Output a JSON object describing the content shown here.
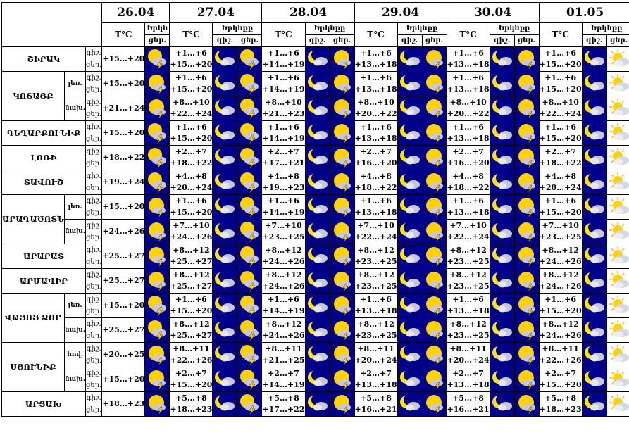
{
  "dates": [
    "26.04",
    "27.04",
    "28.04",
    "29.04",
    "30.04",
    "01.05"
  ],
  "headers": {
    "temp": "T°C",
    "cloud_full": "Երկնքը",
    "cloud_first": "Երկն",
    "night": "գիշ.",
    "day": "ցեր."
  },
  "rows": [
    {
      "region": "ՇԻՐԱԿ",
      "night_label": "գիշ.",
      "day_label": "ցեր.",
      "temps": [
        "+15…+20",
        "+1…+6",
        "+15…+20",
        "+1…+6",
        "+14…+19",
        "+1…+6",
        "+13…+18",
        "+1…+6",
        "+13…+18",
        "+1…+6",
        "+15…+20"
      ],
      "icons": [
        "storm",
        "moon-cloud",
        "storm",
        "moon-cloud",
        "sun-cloud",
        "moon-cloud",
        "sun-cloud",
        "moon-cloud",
        "sun-cloud",
        "moon-cloud",
        "sun"
      ]
    },
    {
      "region": "ԿՈՏԱՅՔ",
      "sub": "լեռ.",
      "night_label": "գիշ.",
      "day_label": "ցեր.",
      "temps": [
        "+15…+20",
        "+1…+6",
        "+15…+20",
        "+1…+6",
        "+14…+19",
        "+1…+6",
        "+13…+18",
        "+1…+6",
        "+13…+18",
        "+1…+6",
        "+15…+20"
      ],
      "icons": [
        "sun-cloud",
        "moon-cloud",
        "storm",
        "moon-cloud",
        "sun-cloud",
        "moon-cloud",
        "sun-cloud",
        "moon-cloud",
        "sun-cloud",
        "moon-cloud",
        "sun"
      ]
    },
    {
      "region": "",
      "sub": "նախ.",
      "night_label": "գիշ.",
      "day_label": "ցեր.",
      "temps": [
        "+21…+24",
        "+8…+10",
        "+22…+24",
        "+8…+10",
        "+21…+23",
        "+8…+10",
        "+20…+22",
        "+8…+10",
        "+20…+22",
        "+8…+10",
        "+22…+24"
      ],
      "icons": [
        "sun-cloud",
        "moon-cloud",
        "storm",
        "moon-cloud",
        "sun-cloud",
        "moon-cloud",
        "sun-cloud",
        "moon-cloud",
        "sun-cloud",
        "moon-cloud",
        "sun"
      ]
    },
    {
      "region": "ԳԵՂԱՐՔՈՒՆԻՔ",
      "night_label": "գիշ.",
      "day_label": "ցեր.",
      "temps": [
        "+15…+20",
        "+1…+6",
        "+15…+20",
        "+1…+6",
        "+14…+19",
        "+1…+6",
        "+13…+18",
        "+1…+6",
        "+13…+18",
        "+1…+6",
        "+15…+20"
      ],
      "icons": [
        "storm",
        "moon-cloud",
        "storm",
        "moon-cloud",
        "sun-cloud",
        "moon-cloud",
        "sun-cloud",
        "moon-cloud",
        "sun-cloud",
        "moon-cloud",
        "sun"
      ]
    },
    {
      "region": "ԼՈՌԻ",
      "night_label": "գիշ.",
      "day_label": "ցեր.",
      "temps": [
        "+18…+22",
        "+2…+7",
        "+18…+22",
        "+2…+7",
        "+17…+21",
        "+2…+7",
        "+16…+20",
        "+2…+7",
        "+16…+20",
        "+2…+7",
        "+18…+22"
      ],
      "icons": [
        "storm",
        "moon-cloud",
        "storm",
        "moon-cloud",
        "sun-cloud",
        "moon-cloud",
        "sun-cloud",
        "moon-cloud",
        "sun-cloud",
        "moon-cloud",
        "sun"
      ]
    },
    {
      "region": "ՏԱՎՈՒՇ",
      "night_label": "գիշ.",
      "day_label": "ցեր.",
      "temps": [
        "+19…+24",
        "+4…+8",
        "+20…+24",
        "+4…+8",
        "+19…+23",
        "+4…+8",
        "+18…+22",
        "+4…+8",
        "+18…+22",
        "+4…+8",
        "+20…+24"
      ],
      "icons": [
        "storm",
        "moon-cloud",
        "storm",
        "moon-cloud",
        "sun-cloud",
        "moon-cloud",
        "sun-cloud",
        "moon-cloud",
        "sun-cloud",
        "moon-cloud",
        "sun"
      ]
    },
    {
      "region": "ԱՐԱԳԱԾՈՏՆ",
      "sub": "լեռ.",
      "night_label": "գիշ.",
      "day_label": "ցեր.",
      "temps": [
        "+15…+20",
        "+1…+6",
        "+15…+20",
        "+1…+6",
        "+14…+19",
        "+1…+6",
        "+13…+18",
        "+1…+6",
        "+13…+18",
        "+1…+6",
        "+15…+20"
      ],
      "icons": [
        "sun-cloud",
        "moon-cloud",
        "storm",
        "moon-cloud",
        "sun-cloud",
        "moon-cloud",
        "sun-cloud",
        "moon-cloud",
        "sun-cloud",
        "moon-cloud",
        "sun"
      ]
    },
    {
      "region": "",
      "sub": "նախ.",
      "night_label": "գիշ.",
      "day_label": "ցեր.",
      "temps": [
        "+24…+26",
        "+7…+10",
        "+24…+26",
        "+7…+10",
        "+23…+25",
        "+7…+10",
        "+22…+24",
        "+7…+10",
        "+22…+24",
        "+7…+10",
        "+23…+25"
      ],
      "icons": [
        "sun-cloud",
        "moon-cloud",
        "storm",
        "moon-cloud",
        "sun-cloud",
        "moon-cloud",
        "sun-cloud",
        "moon-cloud",
        "sun-cloud",
        "moon-cloud",
        "sun"
      ]
    },
    {
      "region": "ԱՐԱՐԱՏ",
      "night_label": "գիշ.",
      "day_label": "ցեր.",
      "temps": [
        "+25…+27",
        "+8…+12",
        "+25…+27",
        "+8…+12",
        "+24…+26",
        "+8…+12",
        "+23…+25",
        "+8…+12",
        "+23…+25",
        "+8…+12",
        "+24…+26"
      ],
      "icons": [
        "sun-cloud",
        "moon-cloud",
        "storm",
        "moon-cloud",
        "sun-cloud",
        "moon-cloud",
        "sun-cloud",
        "moon-cloud",
        "sun-cloud",
        "moon-cloud",
        "sun"
      ]
    },
    {
      "region": "ԱՐՄԱՎԻՐ",
      "night_label": "գիշ.",
      "day_label": "ցեր.",
      "temps": [
        "+25…+27",
        "+8…+12",
        "+25…+27",
        "+8…+12",
        "+24…+26",
        "+8…+12",
        "+23…+25",
        "+8…+12",
        "+23…+25",
        "+8…+12",
        "+24…+26"
      ],
      "icons": [
        "sun-cloud",
        "moon-cloud",
        "storm",
        "moon-cloud",
        "sun-cloud",
        "moon-cloud",
        "sun-cloud",
        "moon-cloud",
        "sun-cloud",
        "moon-cloud",
        "sun"
      ]
    },
    {
      "region": "ՎԱՅՈՑ ՁՈՐ",
      "sub": "լեռ.",
      "night_label": "գիշ.",
      "day_label": "ցեր.",
      "temps": [
        "+15…+20",
        "+1…+6",
        "+15…+20",
        "+1…+6",
        "+14…+19",
        "+1…+6",
        "+13…+18",
        "+1…+6",
        "+13…+18",
        "+1…+6",
        "+15…+20"
      ],
      "icons": [
        "storm",
        "moon-cloud",
        "storm",
        "moon-cloud",
        "sun-cloud",
        "moon-cloud",
        "sun-cloud",
        "moon-cloud",
        "sun-cloud",
        "moon-cloud",
        "sun"
      ]
    },
    {
      "region": "",
      "sub": "նախ.",
      "night_label": "գիշ.",
      "day_label": "ցեր.",
      "temps": [
        "+25…+27",
        "+8…+12",
        "+25…+27",
        "+8…+12",
        "+24…+26",
        "+8…+12",
        "+23…+25",
        "+8…+12",
        "+23…+25",
        "+8…+12",
        "+24…+26"
      ],
      "icons": [
        "storm",
        "moon-cloud",
        "storm",
        "moon-cloud",
        "sun-cloud",
        "moon-cloud",
        "sun-cloud",
        "moon-cloud",
        "sun-cloud",
        "moon-cloud",
        "sun"
      ]
    },
    {
      "region": "ՍՅՈՒՆԻՔ",
      "sub": "հով.",
      "night_label": "գիշ.",
      "day_label": "ցեր.",
      "temps": [
        "+20…+25",
        "+8…+11",
        "+22…+26",
        "+8…+11",
        "+21…+25",
        "+8…+11",
        "+20…+24",
        "+8…+11",
        "+20…+24",
        "+8…+11",
        "+22…+26"
      ],
      "icons": [
        "sun-cloud",
        "moon-cloud",
        "storm",
        "moon-cloud",
        "sun-cloud",
        "moon-cloud",
        "sun-cloud",
        "moon-cloud",
        "sun-cloud",
        "moon-cloud",
        "sun"
      ]
    },
    {
      "region": "",
      "sub": "նախ.",
      "night_label": "գիշ.",
      "day_label": "ցեր.",
      "temps": [
        "+15…+20",
        "+2…+7",
        "+15…+20",
        "+2…+7",
        "+14…+19",
        "+2…+7",
        "+13…+18",
        "+2…+7",
        "+13…+18",
        "+2…+7",
        "+15…+20"
      ],
      "icons": [
        "sun-cloud",
        "moon-cloud",
        "storm",
        "moon-cloud",
        "sun-cloud",
        "moon-cloud",
        "sun-cloud",
        "moon-cloud",
        "sun-cloud",
        "moon-cloud",
        "sun"
      ]
    },
    {
      "region": "ԱՐՑԱԽ",
      "night_label": "գիշ.",
      "day_label": "ցեր.",
      "temps": [
        "+18…+23",
        "+5…+8",
        "+18…+23",
        "+5…+8",
        "+17…+22",
        "+5…+8",
        "+16…+21",
        "+5…+8",
        "+16…+21",
        "+5…+8",
        "+18…+23"
      ],
      "icons": [
        "sun-cloud",
        "moon-cloud",
        "storm",
        "moon-cloud",
        "sun-cloud",
        "moon-cloud",
        "sun-cloud",
        "moon-cloud",
        "sun-cloud",
        "moon-cloud",
        "sun"
      ]
    }
  ],
  "colors": {
    "night_bg": "#00008b",
    "day_sky": "#ffffff",
    "sun": "#ffd200",
    "moon": "#ffe400",
    "cloud": "#c8c8d8"
  }
}
